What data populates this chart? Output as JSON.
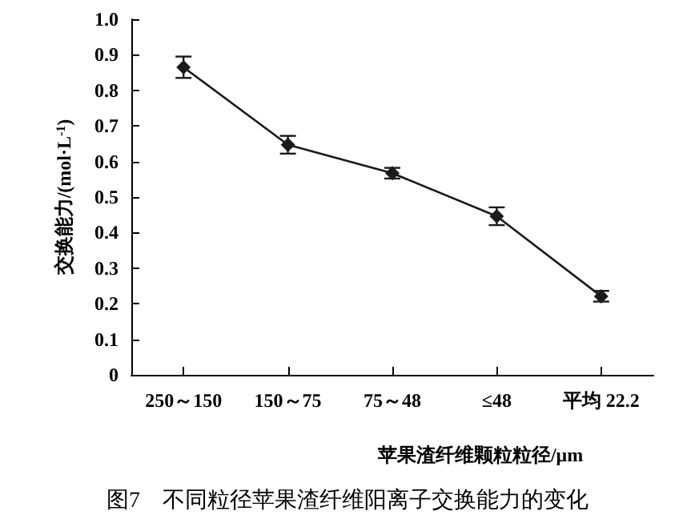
{
  "chart_data": {
    "type": "line",
    "title": "图7　不同粒径苹果渣纤维阳离子交换能力的变化",
    "xlabel": "苹果渣纤维颗粒粒径/μm",
    "ylabel": "交换能力/(mol·L$^{-1}$)",
    "categories": [
      "250～150",
      "150～75",
      "75～48",
      "≤48",
      "平均 22.2"
    ],
    "series": [
      {
        "color": "#1a1a1a",
        "values": [
          0.865,
          0.647,
          0.567,
          0.446,
          0.221
        ],
        "errors": [
          0.03,
          0.025,
          0.015,
          0.025,
          0.015
        ]
      }
    ],
    "ylim": [
      0,
      1
    ],
    "yticks": [
      0,
      0.1,
      0.2,
      0.3,
      0.4,
      0.5,
      0.6,
      0.7,
      0.8,
      0.9,
      {
        "value": 1,
        "label": "1.0"
      }
    ],
    "grid": false,
    "marker": "diamond",
    "line_style": "solid"
  }
}
